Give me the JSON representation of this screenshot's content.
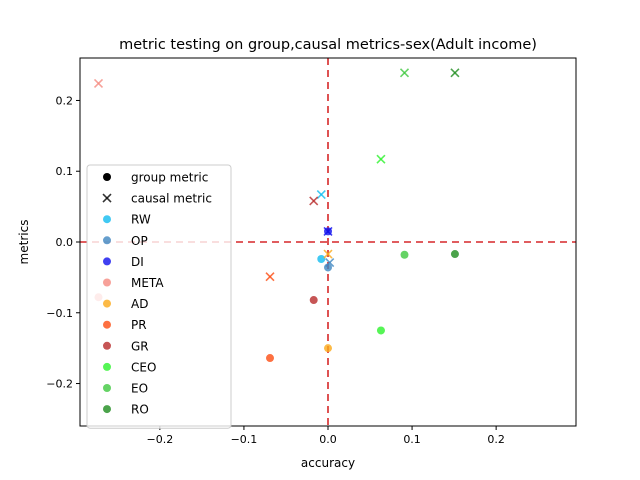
{
  "chart_data": {
    "type": "scatter",
    "title": "metric testing on group,causal metrics-sex(Adult income)",
    "xlabel": "accuracy",
    "ylabel": "metrics",
    "xlim": [
      -0.295,
      0.295
    ],
    "ylim": [
      -0.26,
      0.26
    ],
    "x_ticks": [
      -0.2,
      -0.1,
      0.0,
      0.1,
      0.2
    ],
    "x_tick_labels": [
      "−0.2",
      "−0.1",
      "0.0",
      "0.1",
      "0.2"
    ],
    "y_ticks": [
      -0.2,
      -0.1,
      0.0,
      0.1,
      0.2
    ],
    "y_tick_labels": [
      "−0.2",
      "−0.1",
      "0.0",
      "0.1",
      "0.2"
    ],
    "grid": false,
    "reference_lines": {
      "x": 0,
      "y": 0,
      "color": "#d62728",
      "style": "dashed"
    },
    "legend_placement": "lower-left",
    "marker_legend": [
      {
        "label": "group metric",
        "marker": "circle"
      },
      {
        "label": "causal metric",
        "marker": "x"
      }
    ],
    "series": [
      {
        "name": "RW",
        "color": "#12bcf0",
        "points": [
          {
            "x": -0.008,
            "y": -0.024,
            "marker": "circle"
          },
          {
            "x": -0.008,
            "y": 0.067,
            "marker": "x"
          }
        ]
      },
      {
        "name": "OP",
        "color": "#3f86c0",
        "points": [
          {
            "x": 0.0,
            "y": -0.036,
            "marker": "circle"
          },
          {
            "x": 0.002,
            "y": -0.029,
            "marker": "x"
          }
        ]
      },
      {
        "name": "DI",
        "color": "#1010ee",
        "points": [
          {
            "x": 0.0,
            "y": 0.015,
            "marker": "circle"
          },
          {
            "x": 0.0,
            "y": 0.015,
            "marker": "x"
          }
        ]
      },
      {
        "name": "META",
        "color": "#f58a80",
        "points": [
          {
            "x": -0.273,
            "y": -0.078,
            "marker": "circle"
          },
          {
            "x": -0.273,
            "y": 0.224,
            "marker": "x"
          }
        ]
      },
      {
        "name": "AD",
        "color": "#fba918",
        "points": [
          {
            "x": 0.0,
            "y": -0.15,
            "marker": "circle"
          },
          {
            "x": 0.0,
            "y": -0.017,
            "marker": "x"
          }
        ]
      },
      {
        "name": "PR",
        "color": "#fc4c12",
        "points": [
          {
            "x": -0.069,
            "y": -0.164,
            "marker": "circle"
          },
          {
            "x": -0.069,
            "y": -0.049,
            "marker": "x"
          }
        ]
      },
      {
        "name": "GR",
        "color": "#b82a2a",
        "points": [
          {
            "x": -0.017,
            "y": -0.082,
            "marker": "circle"
          },
          {
            "x": -0.017,
            "y": 0.058,
            "marker": "x"
          }
        ]
      },
      {
        "name": "CEO",
        "color": "#2cf22c",
        "points": [
          {
            "x": 0.063,
            "y": -0.125,
            "marker": "circle"
          },
          {
            "x": 0.063,
            "y": 0.117,
            "marker": "x"
          }
        ]
      },
      {
        "name": "EO",
        "color": "#3ec83e",
        "points": [
          {
            "x": 0.091,
            "y": -0.018,
            "marker": "circle"
          },
          {
            "x": 0.091,
            "y": 0.239,
            "marker": "x"
          }
        ]
      },
      {
        "name": "RO",
        "color": "#1e8c1e",
        "points": [
          {
            "x": 0.151,
            "y": -0.017,
            "marker": "circle"
          },
          {
            "x": 0.151,
            "y": 0.239,
            "marker": "x"
          }
        ]
      }
    ]
  }
}
